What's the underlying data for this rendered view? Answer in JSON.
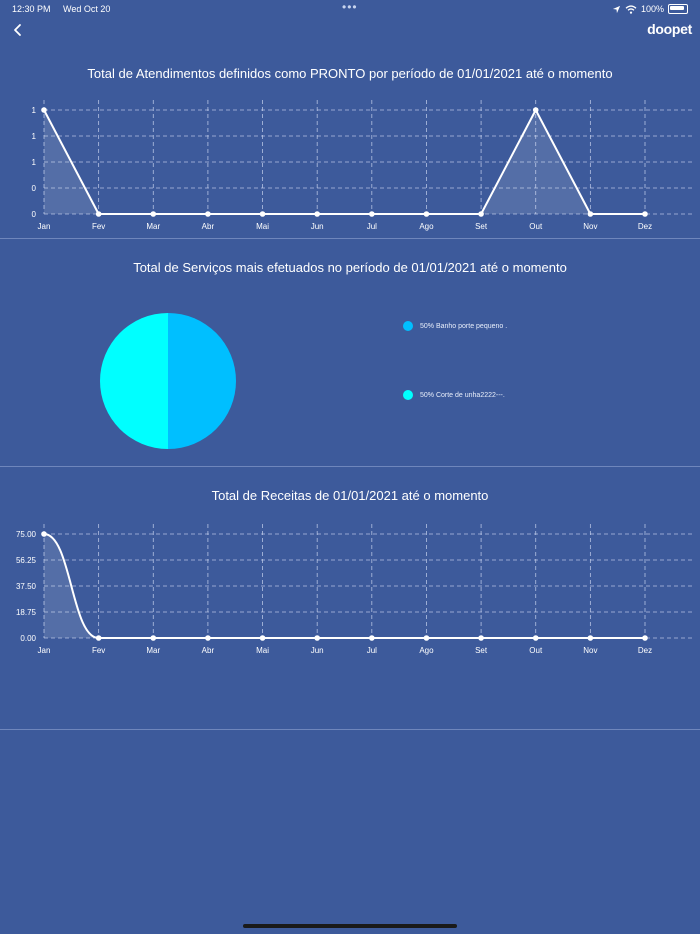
{
  "status_bar": {
    "time": "12:30 PM",
    "date": "Wed Oct 20",
    "battery": "100%"
  },
  "nav": {
    "brand": "doopet"
  },
  "charts": {
    "atendimentos": {
      "title": "Total de Atendimentos definidos como PRONTO por período de 01/01/2021 até o momento",
      "y_ticks": [
        "1",
        "1",
        "1",
        "0",
        "0"
      ]
    },
    "servicos": {
      "title": "Total de Serviços mais efetuados no período de 01/01/2021 até o momento",
      "legend": [
        "50% Banho porte pequeno .",
        "50% Corte de unha2222---."
      ]
    },
    "receitas": {
      "title": "Total de Receitas de 01/01/2021 até o momento",
      "y_ticks": [
        "75.00",
        "56.25",
        "37.50",
        "18.75",
        "0.00"
      ]
    }
  },
  "colors": {
    "background": "#3d5a9b",
    "slice_1": "#00bfff",
    "slice_2": "#00ffff",
    "line": "#ffffff"
  },
  "chart_data": [
    {
      "type": "line",
      "title": "Total de Atendimentos definidos como PRONTO por período de 01/01/2021 até o momento",
      "categories": [
        "Jan",
        "Fev",
        "Mar",
        "Abr",
        "Mai",
        "Jun",
        "Jul",
        "Ago",
        "Set",
        "Out",
        "Nov",
        "Dez"
      ],
      "values": [
        1,
        0,
        0,
        0,
        0,
        0,
        0,
        0,
        0,
        1,
        0,
        0
      ],
      "ylim": [
        0,
        1
      ],
      "grid": true
    },
    {
      "type": "pie",
      "title": "Total de Serviços mais efetuados no período de 01/01/2021 até o momento",
      "labels": [
        "Banho porte pequeno .",
        "Corte de unha2222---."
      ],
      "values": [
        50,
        50
      ],
      "colors": [
        "#00bfff",
        "#00ffff"
      ],
      "legend": "right"
    },
    {
      "type": "line",
      "title": "Total de Receitas de 01/01/2021 até o momento",
      "categories": [
        "Jan",
        "Fev",
        "Mar",
        "Abr",
        "Mai",
        "Jun",
        "Jul",
        "Ago",
        "Set",
        "Out",
        "Nov",
        "Dez"
      ],
      "values": [
        75,
        0,
        0,
        0,
        0,
        0,
        0,
        0,
        0,
        0,
        0,
        0
      ],
      "ylim": [
        0,
        75
      ],
      "grid": true
    }
  ]
}
